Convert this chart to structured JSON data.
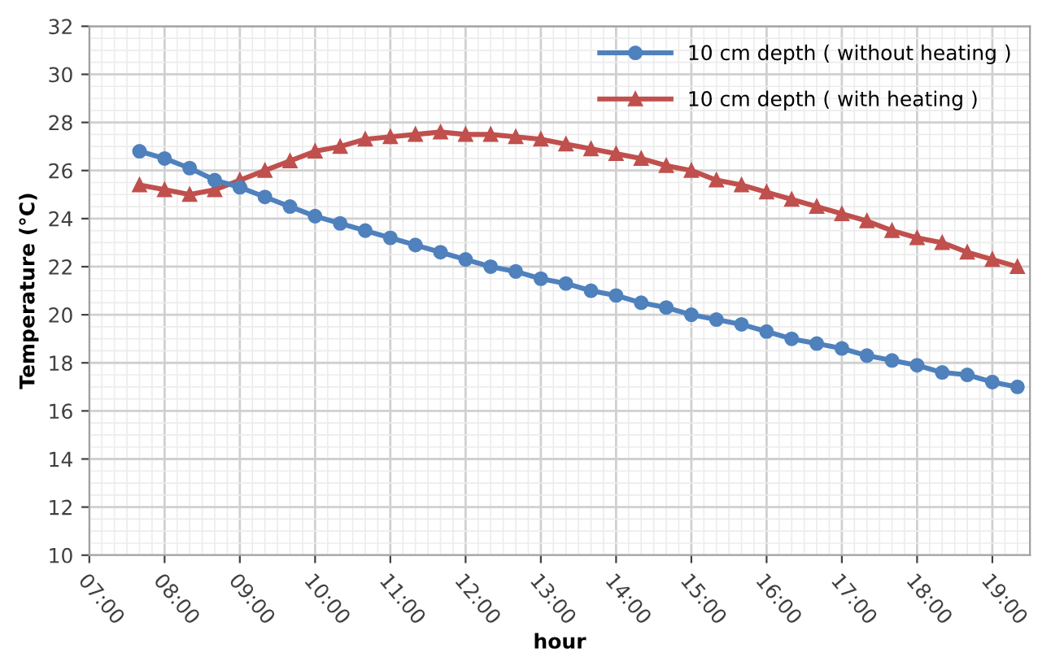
{
  "chart_data": {
    "type": "line",
    "xlabel": "hour",
    "ylabel": "Temperature (°C)",
    "x": [
      7.6667,
      8.0,
      8.3333,
      8.6667,
      9.0,
      9.3333,
      9.6667,
      10.0,
      10.3333,
      10.6667,
      11.0,
      11.3333,
      11.6667,
      12.0,
      12.3333,
      12.6667,
      13.0,
      13.3333,
      13.6667,
      14.0,
      14.3333,
      14.6667,
      15.0,
      15.3333,
      15.6667,
      16.0,
      16.3333,
      16.6667,
      17.0,
      17.3333,
      17.6667,
      18.0,
      18.3333,
      18.6667,
      19.0,
      19.3333
    ],
    "series": [
      {
        "name": "10 cm depth ( without heating )",
        "color": "#4f81bd",
        "marker": "circle",
        "values": [
          26.8,
          26.5,
          26.1,
          25.6,
          25.3,
          24.9,
          24.5,
          24.1,
          23.8,
          23.5,
          23.2,
          22.9,
          22.6,
          22.3,
          22.0,
          21.8,
          21.5,
          21.3,
          21.0,
          20.8,
          20.5,
          20.3,
          20.0,
          19.8,
          19.6,
          19.3,
          19.0,
          18.8,
          18.6,
          18.3,
          18.1,
          17.9,
          17.6,
          17.5,
          17.2,
          17.0
        ]
      },
      {
        "name": "10 cm depth ( with heating )",
        "color": "#c0504d",
        "marker": "triangle",
        "values": [
          25.4,
          25.2,
          25.0,
          25.2,
          25.6,
          26.0,
          26.4,
          26.8,
          27.0,
          27.3,
          27.4,
          27.5,
          27.6,
          27.5,
          27.5,
          27.4,
          27.3,
          27.1,
          26.9,
          26.7,
          26.5,
          26.2,
          26.0,
          25.6,
          25.4,
          25.1,
          24.8,
          24.5,
          24.2,
          23.9,
          23.5,
          23.2,
          23.0,
          22.6,
          22.3,
          22.0
        ]
      }
    ],
    "xlim": [
      7,
      19.5
    ],
    "xticks": [
      {
        "value": 7,
        "label": "07:00"
      },
      {
        "value": 8,
        "label": "08:00"
      },
      {
        "value": 9,
        "label": "09:00"
      },
      {
        "value": 10,
        "label": "10:00"
      },
      {
        "value": 11,
        "label": "11:00"
      },
      {
        "value": 12,
        "label": "12:00"
      },
      {
        "value": 13,
        "label": "13:00"
      },
      {
        "value": 14,
        "label": "14:00"
      },
      {
        "value": 15,
        "label": "15:00"
      },
      {
        "value": 16,
        "label": "16:00"
      },
      {
        "value": 17,
        "label": "17:00"
      },
      {
        "value": 18,
        "label": "18:00"
      },
      {
        "value": 19,
        "label": "19:00"
      }
    ],
    "ylim": [
      10,
      32
    ],
    "yticks": [
      10,
      12,
      14,
      16,
      18,
      20,
      22,
      24,
      26,
      28,
      30,
      32
    ],
    "grid": true,
    "legend": "top right",
    "line_style": "solid"
  }
}
